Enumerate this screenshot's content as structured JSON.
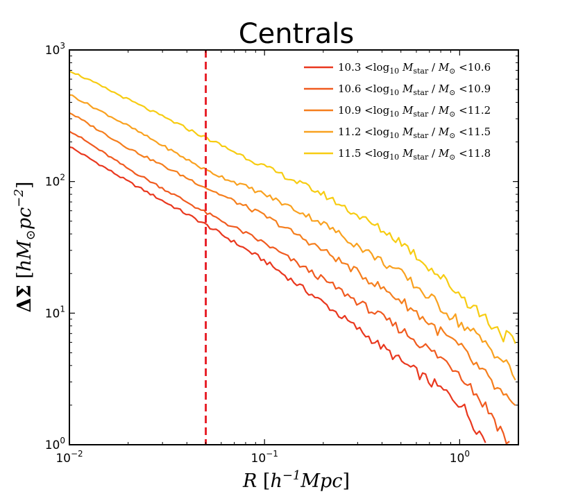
{
  "chart_data": {
    "type": "line",
    "title": "Centrals",
    "xlabel": "R [h^-1 Mpc]",
    "ylabel": "ΔΣ [hM_⊙ pc^-2]",
    "xscale": "log",
    "yscale": "log",
    "xlim": [
      0.01,
      2.0
    ],
    "ylim": [
      1,
      1000
    ],
    "grid": false,
    "legend_position": "top-right",
    "x_ticks": [
      {
        "base": "10",
        "exp": "−2",
        "value": 0.01
      },
      {
        "base": "10",
        "exp": "−1",
        "value": 0.1
      },
      {
        "base": "10",
        "exp": "0",
        "value": 1
      }
    ],
    "y_ticks": [
      {
        "base": "10",
        "exp": "0",
        "value": 1
      },
      {
        "base": "10",
        "exp": "1",
        "value": 10
      },
      {
        "base": "10",
        "exp": "2",
        "value": 100
      },
      {
        "base": "10",
        "exp": "3",
        "value": 1000
      }
    ],
    "vline": {
      "x": 0.05,
      "color": "#e8212a",
      "style": "dashed"
    },
    "series": [
      {
        "name": "10.3 < log10 Mstar / M⊙ < 10.6",
        "range": [
          "10.3",
          "10.6"
        ],
        "color": "#e9371e",
        "points": [
          [
            0.01,
            185
          ],
          [
            0.02,
            100
          ],
          [
            0.05,
            47
          ],
          [
            0.1,
            25
          ],
          [
            0.2,
            12
          ],
          [
            0.5,
            4.3
          ],
          [
            1.0,
            2.1
          ],
          [
            1.4,
            1.0
          ]
        ]
      },
      {
        "name": "10.6 < log10 Mstar / M⊙ < 10.9",
        "range": [
          "10.6",
          "10.9"
        ],
        "color": "#f05a1f",
        "points": [
          [
            0.01,
            245
          ],
          [
            0.02,
            125
          ],
          [
            0.05,
            58
          ],
          [
            0.1,
            34
          ],
          [
            0.2,
            18
          ],
          [
            0.5,
            7.5
          ],
          [
            1.0,
            3.6
          ],
          [
            1.5,
            1.6
          ],
          [
            1.8,
            1.0
          ]
        ]
      },
      {
        "name": "10.9 < log10 Mstar / M⊙ < 11.2",
        "range": [
          "10.9",
          "11.2"
        ],
        "color": "#f57e1d",
        "points": [
          [
            0.01,
            335
          ],
          [
            0.02,
            180
          ],
          [
            0.05,
            90
          ],
          [
            0.1,
            55
          ],
          [
            0.2,
            30
          ],
          [
            0.5,
            12.5
          ],
          [
            1.0,
            5.5
          ],
          [
            1.5,
            2.8
          ],
          [
            2.0,
            1.7
          ]
        ]
      },
      {
        "name": "11.2 < log10 Mstar / M⊙ < 11.5",
        "range": [
          "11.2",
          "11.5"
        ],
        "color": "#f9a11f",
        "points": [
          [
            0.01,
            460
          ],
          [
            0.02,
            265
          ],
          [
            0.05,
            122
          ],
          [
            0.1,
            80
          ],
          [
            0.2,
            48
          ],
          [
            0.5,
            20
          ],
          [
            1.0,
            8.5
          ],
          [
            1.5,
            5.2
          ],
          [
            2.0,
            3.1
          ]
        ]
      },
      {
        "name": "11.5 < log10 Mstar / M⊙ < 11.8",
        "range": [
          "11.5",
          "11.8"
        ],
        "color": "#f7cc12",
        "points": [
          [
            0.01,
            700
          ],
          [
            0.02,
            420
          ],
          [
            0.05,
            215
          ],
          [
            0.1,
            130
          ],
          [
            0.2,
            80
          ],
          [
            0.5,
            35
          ],
          [
            1.0,
            14
          ],
          [
            1.5,
            8
          ],
          [
            2.0,
            5.5
          ]
        ]
      }
    ]
  }
}
